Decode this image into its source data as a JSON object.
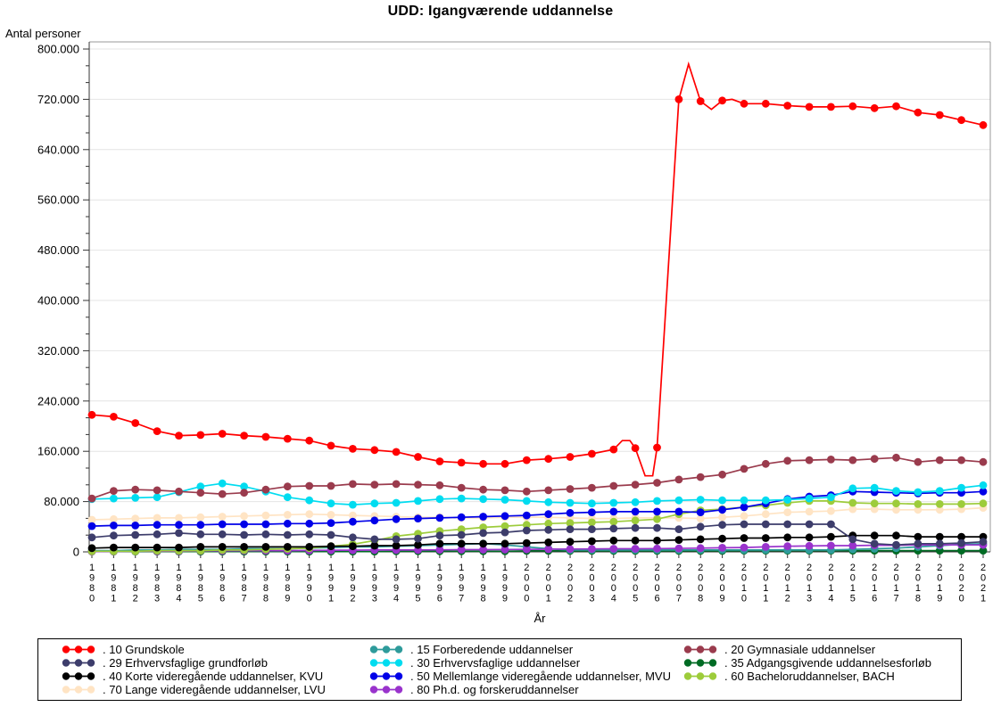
{
  "title": "UDD: Igangværende uddannelse",
  "y_axis": {
    "label": "Antal personer",
    "tick_labels": [
      "0",
      "80.000",
      "160.000",
      "240.000",
      "320.000",
      "400.000",
      "480.000",
      "560.000",
      "640.000",
      "720.000",
      "800.000"
    ],
    "min": 0,
    "max": 800000,
    "major_step": 80000,
    "minor_per_major": 3
  },
  "x_axis": {
    "label": "År",
    "first_year": 1980,
    "last_year": 2021
  },
  "chart_data": {
    "type": "line",
    "title": "UDD: Igangværende uddannelse",
    "xlabel": "År",
    "ylabel": "Antal personer",
    "ylim": [
      0,
      800000
    ],
    "grid": "horizontal-major",
    "legend_position": "bottom-box",
    "x": [
      1980,
      1981,
      1982,
      1983,
      1984,
      1985,
      1986,
      1987,
      1988,
      1989,
      1990,
      1991,
      1992,
      1993,
      1994,
      1995,
      1996,
      1997,
      1998,
      1999,
      2000,
      2001,
      2002,
      2003,
      2004,
      2005,
      2006,
      2007,
      2008,
      2009,
      2010,
      2011,
      2012,
      2013,
      2014,
      2015,
      2016,
      2017,
      2018,
      2019,
      2020,
      2021
    ],
    "series": [
      {
        "key": "grundskole",
        "name": ". 10 Grundskole",
        "color": "#FF0000",
        "values": [
          218000,
          215000,
          205000,
          192000,
          185000,
          186000,
          188000,
          185000,
          183000,
          180000,
          177000,
          169000,
          164000,
          162000,
          159000,
          151000,
          144000,
          142000,
          140000,
          140000,
          146000,
          148000,
          151000,
          156000,
          163000,
          165000,
          166000,
          720000,
          717000,
          718000,
          713000,
          713000,
          710000,
          708000,
          708000,
          709000,
          706000,
          709000,
          699000,
          695000,
          687000,
          679000
        ],
        "unmarked_vertices": [
          [
            2004.4,
            177000
          ],
          [
            2004.75,
            177000
          ],
          [
            2005.45,
            121000
          ],
          [
            2005.8,
            121000
          ],
          [
            2007.45,
            776000
          ],
          [
            2008.5,
            704000
          ],
          [
            2009.45,
            720000
          ]
        ]
      },
      {
        "key": "forberedende",
        "name": ". 15 Forberedende uddannelser",
        "color": "#2E9B9B",
        "values": [
          2000,
          2000,
          3000,
          3000,
          4000,
          4000,
          4000,
          5000,
          5000,
          5000,
          6000,
          7000,
          8000,
          8000,
          9000,
          10000,
          11000,
          12000,
          13000,
          11000,
          8000,
          5000,
          3000,
          3000,
          3000,
          3000,
          3000,
          3000,
          3000,
          3000,
          3000,
          3000,
          3000,
          3000,
          3000,
          4000,
          5000,
          6000,
          8000,
          10000,
          12000,
          13000
        ]
      },
      {
        "key": "gymnasiale",
        "name": ". 20 Gymnasiale uddannelser",
        "color": "#9A3B4D",
        "values": [
          85000,
          97000,
          99000,
          98000,
          96000,
          94000,
          92000,
          94000,
          99000,
          104000,
          105000,
          105000,
          108000,
          107000,
          108000,
          107000,
          106000,
          102000,
          99000,
          98000,
          96000,
          98000,
          100000,
          102000,
          105000,
          107000,
          110000,
          115000,
          119000,
          123000,
          132000,
          140000,
          145000,
          146000,
          147000,
          146000,
          148000,
          150000,
          143000,
          146000,
          146000,
          143000
        ]
      },
      {
        "key": "grundforlob",
        "name": ". 29 Erhvervsfaglige grundforløb",
        "color": "#3D3D6B",
        "values": [
          23000,
          26000,
          27000,
          28000,
          30000,
          28000,
          28000,
          27000,
          28000,
          27000,
          28000,
          27000,
          23000,
          20000,
          20000,
          21000,
          26000,
          27000,
          30000,
          31000,
          34000,
          35000,
          36000,
          36000,
          37000,
          38000,
          38000,
          36000,
          40000,
          43000,
          44000,
          44000,
          44000,
          44000,
          44000,
          20000,
          13000,
          11000,
          13000,
          13000,
          14000,
          16000
        ]
      },
      {
        "key": "erhvervsudd",
        "name": ". 30 Erhvervsfaglige uddannelser",
        "color": "#00DCF0",
        "values": [
          84000,
          85000,
          86000,
          87000,
          95000,
          104000,
          109000,
          104000,
          96000,
          87000,
          82000,
          77000,
          75000,
          77000,
          78000,
          81000,
          84000,
          85000,
          84000,
          83000,
          81000,
          79000,
          78000,
          77000,
          78000,
          79000,
          81000,
          82000,
          83000,
          82000,
          82000,
          82000,
          83000,
          85000,
          87000,
          101000,
          102000,
          97000,
          95000,
          97000,
          102000,
          106000
        ]
      },
      {
        "key": "adgangsgivende",
        "name": ". 35 Adgangsgivende uddannelsesforløb",
        "color": "#006B24",
        "values": [
          500,
          500,
          500,
          500,
          500,
          500,
          500,
          500,
          500,
          500,
          500,
          500,
          500,
          500,
          1000,
          1000,
          1000,
          1000,
          1000,
          1000,
          1500,
          1500,
          1500,
          1500,
          1500,
          1500,
          1500,
          1500,
          1500,
          1500,
          2000,
          2000,
          2000,
          2000,
          2000,
          2000,
          2000,
          2000,
          2000,
          2000,
          2000,
          2000
        ]
      },
      {
        "key": "kvu",
        "name": ". 40 Korte videregående uddannelser, KVU",
        "color": "#000000",
        "values": [
          6000,
          7000,
          7000,
          7000,
          7000,
          8000,
          8000,
          8000,
          8000,
          8000,
          8000,
          9000,
          9000,
          10000,
          10000,
          11000,
          13000,
          13000,
          13000,
          13000,
          14000,
          15000,
          16000,
          17000,
          18000,
          18000,
          18000,
          19000,
          20000,
          21000,
          22000,
          22000,
          23000,
          23000,
          24000,
          26000,
          26000,
          26000,
          24000,
          24000,
          24000,
          24000
        ]
      },
      {
        "key": "mvu",
        "name": ". 50 Mellemlange videregående uddannelser, MVU",
        "color": "#0000E8",
        "values": [
          41000,
          42000,
          42000,
          43000,
          43000,
          43000,
          44000,
          44000,
          44000,
          45000,
          45000,
          46000,
          48000,
          50000,
          52000,
          53000,
          54000,
          55000,
          56000,
          57000,
          58000,
          60000,
          62000,
          63000,
          64000,
          64000,
          64000,
          64000,
          63000,
          67000,
          71000,
          77000,
          84000,
          88000,
          90000,
          96000,
          95000,
          94000,
          93000,
          94000,
          94000,
          96000
        ]
      },
      {
        "key": "bach",
        "name": ". 60 Bacheloruddannelser, BACH",
        "color": "#9DCC3B",
        "values": [
          1000,
          1000,
          1000,
          2000,
          2000,
          2000,
          3000,
          3000,
          4000,
          5000,
          6000,
          9000,
          12000,
          18000,
          25000,
          29000,
          33000,
          36000,
          39000,
          41000,
          43000,
          45000,
          46000,
          47000,
          48000,
          50000,
          52000,
          60000,
          66000,
          68000,
          71000,
          74000,
          78000,
          81000,
          81000,
          78000,
          77000,
          77000,
          76000,
          76000,
          76000,
          77000
        ]
      },
      {
        "key": "lvu",
        "name": ". 70 Lange videregående uddannelser, LVU",
        "color": "#FFE4C4",
        "values": [
          51000,
          52000,
          53000,
          54000,
          54000,
          55000,
          56000,
          57000,
          58000,
          59000,
          60000,
          59000,
          58000,
          57000,
          56000,
          55000,
          55000,
          54000,
          54000,
          55000,
          55000,
          55000,
          54000,
          53000,
          53000,
          54000,
          54000,
          54000,
          53000,
          55000,
          57000,
          60000,
          63000,
          64000,
          65000,
          68000,
          68000,
          67000,
          67000,
          67000,
          68000,
          70000
        ]
      },
      {
        "key": "phd",
        "name": ". 80 Ph.d. og forskeruddannelser",
        "color": "#9933CC",
        "values": [
          500,
          700,
          1000,
          1000,
          1200,
          1500,
          1700,
          2000,
          2000,
          2000,
          2200,
          2500,
          2700,
          3000,
          3000,
          3000,
          3200,
          3500,
          3500,
          3700,
          4000,
          4200,
          4500,
          4700,
          5000,
          5000,
          5200,
          5500,
          6000,
          6500,
          7000,
          8000,
          9000,
          9500,
          10000,
          10000,
          10500,
          10500,
          11000,
          11000,
          11000,
          11000
        ]
      }
    ]
  },
  "legend": {
    "items_column_order": [
      "grundskole",
      "grundforlob",
      "kvu",
      "lvu",
      "forberedende",
      "erhvervsudd",
      "mvu",
      "phd",
      "gymnasiale",
      "adgangsgivende",
      "bach"
    ]
  },
  "style": {
    "grid_color": "#E4E4E4",
    "frame_color": "#999999",
    "axis_color": "#333333",
    "background": "#FFFFFF"
  }
}
